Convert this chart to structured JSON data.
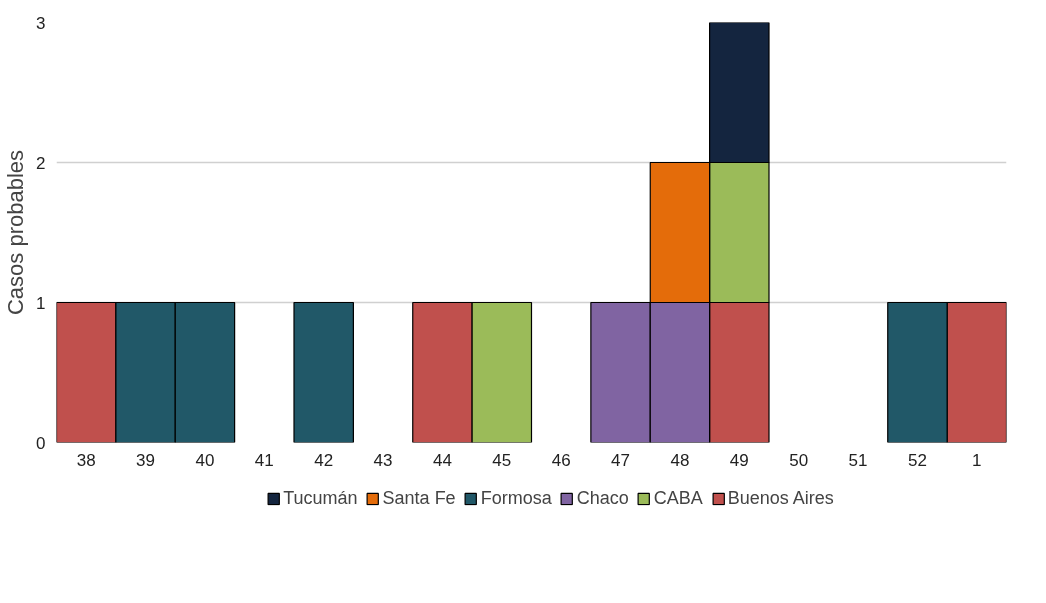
{
  "chart_data": {
    "type": "bar",
    "stacked": true,
    "ylabel": "Casos probables",
    "categories": [
      "38",
      "39",
      "40",
      "41",
      "42",
      "43",
      "44",
      "45",
      "46",
      "47",
      "48",
      "49",
      "50",
      "51",
      "52",
      "1"
    ],
    "series": [
      {
        "name": "Buenos Aires",
        "color": "#c0504d",
        "values": [
          1,
          0,
          0,
          0,
          0,
          0,
          1,
          0,
          0,
          0,
          0,
          1,
          0,
          0,
          0,
          1
        ]
      },
      {
        "name": "CABA",
        "color": "#9bbb59",
        "values": [
          0,
          0,
          0,
          0,
          0,
          0,
          0,
          1,
          0,
          0,
          0,
          1,
          0,
          0,
          0,
          0
        ]
      },
      {
        "name": "Chaco",
        "color": "#8064a2",
        "values": [
          0,
          0,
          0,
          0,
          0,
          0,
          0,
          0,
          0,
          1,
          1,
          0,
          0,
          0,
          0,
          0
        ]
      },
      {
        "name": "Formosa",
        "color": "#215868",
        "values": [
          0,
          1,
          1,
          0,
          1,
          0,
          0,
          0,
          0,
          0,
          0,
          0,
          0,
          0,
          1,
          0
        ]
      },
      {
        "name": "Santa Fe",
        "color": "#e46c0a",
        "values": [
          0,
          0,
          0,
          0,
          0,
          0,
          0,
          0,
          0,
          0,
          1,
          0,
          0,
          0,
          0,
          0
        ]
      },
      {
        "name": "Tucumán",
        "color": "#14253f",
        "values": [
          0,
          0,
          0,
          0,
          0,
          0,
          0,
          0,
          0,
          0,
          0,
          1,
          0,
          0,
          0,
          0
        ]
      }
    ],
    "ylim": [
      0,
      3
    ],
    "yticks": [
      0,
      1,
      2,
      3
    ],
    "grid": "y",
    "legend": "bottom"
  }
}
